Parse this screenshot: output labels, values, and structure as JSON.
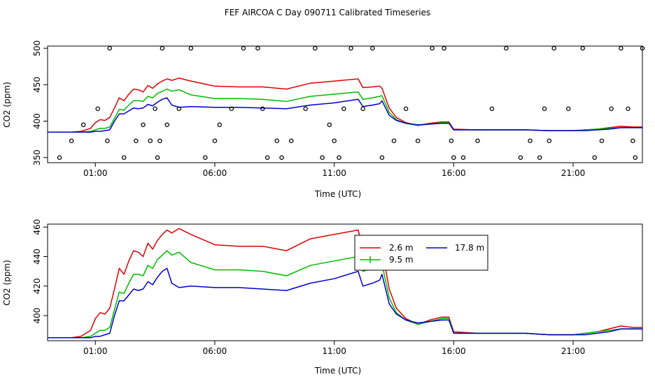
{
  "title": "FEF AIRCOA C  Day 090711  Calibrated Timeseries",
  "colors": {
    "s26": "#dd0000",
    "s95": "#00bb00",
    "s178": "#0000cc",
    "axis": "#000000"
  },
  "chart_data": [
    {
      "type": "line",
      "panel": "top",
      "xlabel": "Time (UTC)",
      "ylabel": "CO2 (ppm)",
      "xlim": [
        -1.0,
        23.9
      ],
      "ylim": [
        343,
        503
      ],
      "xticks": [
        1,
        6,
        11,
        16,
        21
      ],
      "xtick_labels": [
        "01:00",
        "06:00",
        "11:00",
        "16:00",
        "21:00"
      ],
      "yticks": [
        350,
        400,
        450,
        500
      ],
      "ytick_labels": [
        "350",
        "400",
        "450",
        "500"
      ],
      "series": [
        {
          "name": "2.6 m",
          "color": "#dd0000",
          "kind": "line",
          "x": [
            -1.0,
            -0.5,
            0.0,
            0.4,
            0.8,
            1.0,
            1.2,
            1.4,
            1.6,
            1.8,
            2.0,
            2.2,
            2.4,
            2.6,
            2.8,
            3.0,
            3.2,
            3.4,
            3.6,
            3.8,
            4.0,
            4.2,
            4.5,
            5.0,
            6.0,
            7.0,
            8.0,
            9.0,
            10.0,
            11.0,
            12.0,
            12.2,
            12.6,
            12.9,
            13.0,
            13.3,
            13.6,
            14.0,
            14.5,
            15.0,
            15.5,
            15.8,
            16.0,
            17.0,
            18.0,
            19.0,
            20.0,
            21.0,
            21.5,
            22.0,
            22.5,
            23.0,
            23.5,
            23.9
          ],
          "y": [
            385,
            385,
            385,
            386,
            390,
            398,
            402,
            401,
            405,
            418,
            432,
            428,
            437,
            444,
            443,
            440,
            449,
            445,
            451,
            455,
            458,
            456,
            459,
            455,
            448,
            447,
            447,
            444,
            452,
            455,
            458,
            446,
            447,
            448,
            445,
            418,
            405,
            398,
            394,
            397,
            399,
            399,
            389,
            388,
            388,
            388,
            387,
            387,
            388,
            389,
            391,
            393,
            392,
            392
          ]
        },
        {
          "name": "9.5 m",
          "color": "#00bb00",
          "kind": "line",
          "x": [
            -1.0,
            -0.5,
            0.0,
            0.4,
            0.8,
            1.0,
            1.2,
            1.4,
            1.6,
            1.8,
            2.0,
            2.2,
            2.4,
            2.6,
            2.8,
            3.0,
            3.2,
            3.4,
            3.6,
            3.8,
            4.0,
            4.2,
            4.5,
            5.0,
            6.0,
            7.0,
            8.0,
            9.0,
            10.0,
            11.0,
            12.0,
            12.2,
            12.6,
            12.9,
            13.0,
            13.3,
            13.6,
            14.0,
            14.5,
            15.0,
            15.5,
            15.8,
            16.0,
            17.0,
            18.0,
            19.0,
            20.0,
            21.0,
            21.5,
            22.0,
            22.5,
            23.0,
            23.5,
            23.9
          ],
          "y": [
            385,
            385,
            385,
            385,
            386,
            388,
            390,
            390,
            392,
            404,
            416,
            415,
            422,
            428,
            428,
            427,
            434,
            432,
            438,
            441,
            444,
            441,
            443,
            436,
            431,
            431,
            430,
            427,
            434,
            437,
            440,
            430,
            432,
            434,
            435,
            412,
            402,
            397,
            394,
            396,
            398,
            398,
            388,
            388,
            388,
            388,
            387,
            387,
            388,
            389,
            390,
            391,
            391,
            391
          ]
        },
        {
          "name": "17.8 m",
          "color": "#0000cc",
          "kind": "line",
          "x": [
            -1.0,
            -0.5,
            0.0,
            0.4,
            0.8,
            1.0,
            1.2,
            1.4,
            1.6,
            1.8,
            2.0,
            2.2,
            2.4,
            2.6,
            2.8,
            3.0,
            3.2,
            3.4,
            3.6,
            3.8,
            4.0,
            4.2,
            4.5,
            5.0,
            6.0,
            7.0,
            8.0,
            9.0,
            10.0,
            11.0,
            12.0,
            12.2,
            12.6,
            12.9,
            13.0,
            13.3,
            13.6,
            14.0,
            14.5,
            15.0,
            15.5,
            15.8,
            16.0,
            17.0,
            18.0,
            19.0,
            20.0,
            21.0,
            21.5,
            22.0,
            22.5,
            23.0,
            23.5,
            23.9
          ],
          "y": [
            385,
            385,
            385,
            385,
            385,
            386,
            386,
            387,
            388,
            400,
            410,
            410,
            414,
            418,
            417,
            418,
            423,
            421,
            426,
            430,
            432,
            422,
            419,
            420,
            419,
            419,
            418,
            417,
            422,
            425,
            430,
            420,
            422,
            424,
            428,
            408,
            401,
            397,
            395,
            396,
            397,
            397,
            388,
            388,
            388,
            388,
            387,
            387,
            387,
            388,
            389,
            391,
            391,
            391
          ]
        },
        {
          "name": "markers",
          "color": "#000000",
          "kind": "points",
          "x": [
            -0.5,
            0.0,
            0.5,
            1.1,
            1.5,
            1.6,
            2.2,
            2.7,
            3.0,
            3.3,
            3.5,
            3.6,
            3.7,
            3.8,
            4.0,
            4.5,
            5.0,
            5.6,
            6.0,
            6.2,
            6.7,
            7.2,
            7.8,
            8.0,
            8.2,
            8.6,
            8.8,
            9.2,
            9.8,
            10.2,
            10.5,
            10.8,
            11.0,
            11.2,
            11.4,
            11.7,
            12.2,
            12.6,
            13.0,
            13.5,
            14.0,
            14.5,
            15.1,
            15.6,
            15.9,
            16.0,
            16.4,
            17.0,
            17.6,
            18.2,
            18.8,
            19.2,
            19.6,
            19.8,
            20.0,
            20.2,
            20.8,
            21.4,
            21.9,
            22.2,
            22.6,
            23.0,
            23.3,
            23.5,
            23.6,
            23.9
          ],
          "y": [
            350,
            373,
            395,
            417,
            373,
            500,
            350,
            373,
            395,
            373,
            417,
            350,
            373,
            500,
            395,
            417,
            500,
            350,
            373,
            395,
            417,
            500,
            500,
            417,
            350,
            373,
            350,
            373,
            417,
            500,
            350,
            395,
            373,
            350,
            417,
            500,
            417,
            500,
            350,
            373,
            417,
            373,
            500,
            500,
            373,
            350,
            350,
            373,
            417,
            500,
            350,
            373,
            350,
            417,
            373,
            500,
            417,
            500,
            350,
            373,
            417,
            500,
            417,
            373,
            350,
            500
          ]
        }
      ]
    },
    {
      "type": "line",
      "panel": "bottom",
      "xlabel": "Time (UTC)",
      "ylabel": "CO2 (ppm)",
      "xlim": [
        -1.0,
        23.9
      ],
      "ylim": [
        383,
        462
      ],
      "xticks": [
        1,
        6,
        11,
        16,
        21
      ],
      "xtick_labels": [
        "01:00",
        "06:00",
        "11:00",
        "16:00",
        "21:00"
      ],
      "yticks": [
        400,
        420,
        440,
        460
      ],
      "ytick_labels": [
        "400",
        "420",
        "440",
        "460"
      ],
      "legend": {
        "placement": "top-right",
        "entries": [
          "2.6 m",
          "9.5 m",
          "17.8 m"
        ]
      },
      "series": [
        {
          "name": "2.6 m",
          "color": "#dd0000",
          "kind": "line",
          "x": [
            -1.0,
            -0.5,
            0.0,
            0.4,
            0.8,
            1.0,
            1.2,
            1.4,
            1.6,
            1.8,
            2.0,
            2.2,
            2.4,
            2.6,
            2.8,
            3.0,
            3.2,
            3.4,
            3.6,
            3.8,
            4.0,
            4.2,
            4.5,
            5.0,
            6.0,
            7.0,
            8.0,
            9.0,
            10.0,
            11.0,
            12.0,
            12.2,
            12.6,
            12.9,
            13.0,
            13.3,
            13.6,
            14.0,
            14.5,
            15.0,
            15.5,
            15.8,
            16.0,
            17.0,
            18.0,
            19.0,
            20.0,
            21.0,
            21.5,
            22.0,
            22.5,
            23.0,
            23.5,
            23.9
          ],
          "y": [
            385,
            385,
            385,
            386,
            390,
            398,
            402,
            401,
            405,
            418,
            432,
            428,
            437,
            444,
            443,
            440,
            449,
            445,
            451,
            455,
            458,
            456,
            459,
            455,
            448,
            447,
            447,
            444,
            452,
            455,
            458,
            446,
            447,
            448,
            445,
            418,
            405,
            398,
            394,
            397,
            399,
            399,
            389,
            388,
            388,
            388,
            387,
            387,
            388,
            389,
            391,
            393,
            392,
            392
          ]
        },
        {
          "name": "9.5 m",
          "color": "#00bb00",
          "kind": "line",
          "x": [
            -1.0,
            -0.5,
            0.0,
            0.4,
            0.8,
            1.0,
            1.2,
            1.4,
            1.6,
            1.8,
            2.0,
            2.2,
            2.4,
            2.6,
            2.8,
            3.0,
            3.2,
            3.4,
            3.6,
            3.8,
            4.0,
            4.2,
            4.5,
            5.0,
            6.0,
            7.0,
            8.0,
            9.0,
            10.0,
            11.0,
            12.0,
            12.2,
            12.6,
            12.9,
            13.0,
            13.3,
            13.6,
            14.0,
            14.5,
            15.0,
            15.5,
            15.8,
            16.0,
            17.0,
            18.0,
            19.0,
            20.0,
            21.0,
            21.5,
            22.0,
            22.5,
            23.0,
            23.5,
            23.9
          ],
          "y": [
            385,
            385,
            385,
            385,
            386,
            388,
            390,
            390,
            392,
            404,
            416,
            415,
            422,
            428,
            428,
            427,
            434,
            432,
            438,
            441,
            444,
            441,
            443,
            436,
            431,
            431,
            430,
            427,
            434,
            437,
            440,
            430,
            432,
            434,
            435,
            412,
            402,
            397,
            394,
            396,
            398,
            398,
            388,
            388,
            388,
            388,
            387,
            387,
            388,
            389,
            390,
            391,
            391,
            391
          ]
        },
        {
          "name": "17.8 m",
          "color": "#0000cc",
          "kind": "line",
          "x": [
            -1.0,
            -0.5,
            0.0,
            0.4,
            0.8,
            1.0,
            1.2,
            1.4,
            1.6,
            1.8,
            2.0,
            2.2,
            2.4,
            2.6,
            2.8,
            3.0,
            3.2,
            3.4,
            3.6,
            3.8,
            4.0,
            4.2,
            4.5,
            5.0,
            6.0,
            7.0,
            8.0,
            9.0,
            10.0,
            11.0,
            12.0,
            12.2,
            12.6,
            12.9,
            13.0,
            13.3,
            13.6,
            14.0,
            14.5,
            15.0,
            15.5,
            15.8,
            16.0,
            17.0,
            18.0,
            19.0,
            20.0,
            21.0,
            21.5,
            22.0,
            22.5,
            23.0,
            23.5,
            23.9
          ],
          "y": [
            385,
            385,
            385,
            385,
            385,
            386,
            386,
            387,
            388,
            400,
            410,
            410,
            414,
            418,
            417,
            418,
            423,
            421,
            426,
            430,
            432,
            422,
            419,
            420,
            419,
            419,
            418,
            417,
            422,
            425,
            430,
            420,
            422,
            424,
            428,
            408,
            401,
            397,
            395,
            396,
            397,
            397,
            388,
            388,
            388,
            388,
            387,
            387,
            387,
            388,
            389,
            391,
            391,
            391
          ]
        }
      ]
    }
  ]
}
